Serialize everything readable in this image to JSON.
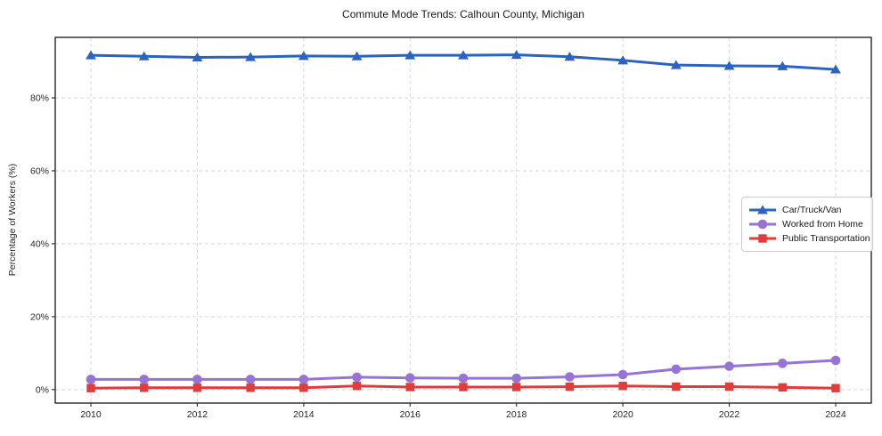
{
  "figure": {
    "title": "Commute Mode Trends: Calhoun County, Michigan",
    "ylabel": "Percentage of Workers (%)"
  },
  "colors": {
    "background": "#ffffff",
    "grid": "#d9d9d9",
    "axis": "#262626",
    "text": "#262626",
    "car_truck_van": "#2a63c1",
    "worked_from_home": "#9673d6",
    "public_transportation": "#e03c3c"
  },
  "chart_data": {
    "type": "line",
    "title": "Commute Mode Trends: Calhoun County, Michigan",
    "xlabel": "",
    "ylabel": "Percentage of Workers (%)",
    "x": [
      2010,
      2011,
      2012,
      2013,
      2014,
      2015,
      2016,
      2017,
      2018,
      2019,
      2020,
      2021,
      2022,
      2023,
      2024
    ],
    "series": [
      {
        "name": "Car/Truck/Van",
        "color": "#2a63c1",
        "marker": "triangle",
        "values": [
          91.7,
          91.4,
          91.1,
          91.2,
          91.5,
          91.4,
          91.7,
          91.7,
          91.8,
          91.3,
          90.3,
          89.0,
          88.8,
          88.7,
          87.8
        ]
      },
      {
        "name": "Worked from Home",
        "color": "#9673d6",
        "marker": "circle",
        "values": [
          2.8,
          2.8,
          2.8,
          2.8,
          2.8,
          3.4,
          3.2,
          3.1,
          3.1,
          3.5,
          4.1,
          5.6,
          6.4,
          7.2,
          8.0
        ]
      },
      {
        "name": "Public Transportation",
        "color": "#e03c3c",
        "marker": "square",
        "values": [
          0.4,
          0.5,
          0.5,
          0.5,
          0.5,
          1.0,
          0.7,
          0.7,
          0.7,
          0.8,
          1.0,
          0.8,
          0.8,
          0.6,
          0.4
        ]
      }
    ],
    "xticks": {
      "values": [
        2010,
        2012,
        2014,
        2016,
        2018,
        2020,
        2022,
        2024
      ],
      "labels": [
        "2010",
        "2012",
        "2014",
        "2016",
        "2018",
        "2020",
        "2022",
        "2024"
      ]
    },
    "yticks": {
      "values": [
        0,
        20,
        40,
        60,
        80
      ],
      "labels": [
        "0%",
        "20%",
        "40%",
        "60%",
        "80%"
      ]
    },
    "xlim": [
      2009.33,
      2024.67
    ],
    "ylim": [
      -3.7,
      96.6
    ],
    "grid": true,
    "grid_style": "dashed",
    "legend_position": "center right"
  }
}
